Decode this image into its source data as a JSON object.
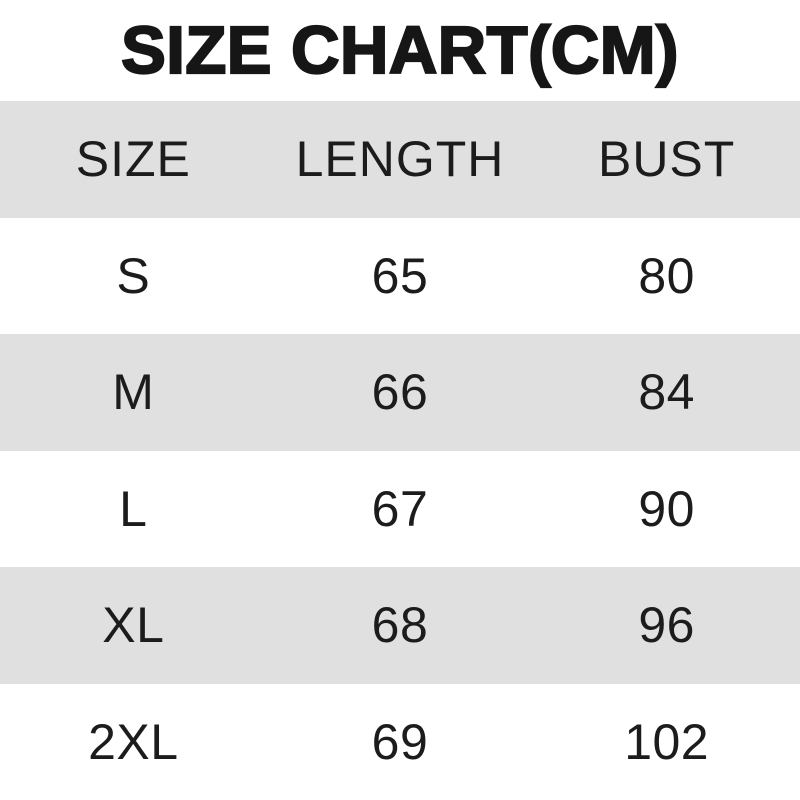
{
  "title": "SIZE CHART(CM)",
  "chart_data": {
    "type": "table",
    "title": "SIZE CHART(CM)",
    "units": "cm",
    "columns": [
      "SIZE",
      "LENGTH",
      "BUST"
    ],
    "rows": [
      [
        "S",
        "65",
        "80"
      ],
      [
        "M",
        "66",
        "84"
      ],
      [
        "L",
        "67",
        "90"
      ],
      [
        "XL",
        "68",
        "96"
      ],
      [
        "2XL",
        "69",
        "102"
      ]
    ],
    "layout": {
      "stripe_color": "#e0e0e0",
      "row_background": "#ffffff",
      "text_color": "#1c1c1c",
      "title_color": "#161616",
      "striped_rows": [
        "header",
        "M",
        "XL"
      ],
      "grid": "off",
      "borders": "none"
    }
  }
}
